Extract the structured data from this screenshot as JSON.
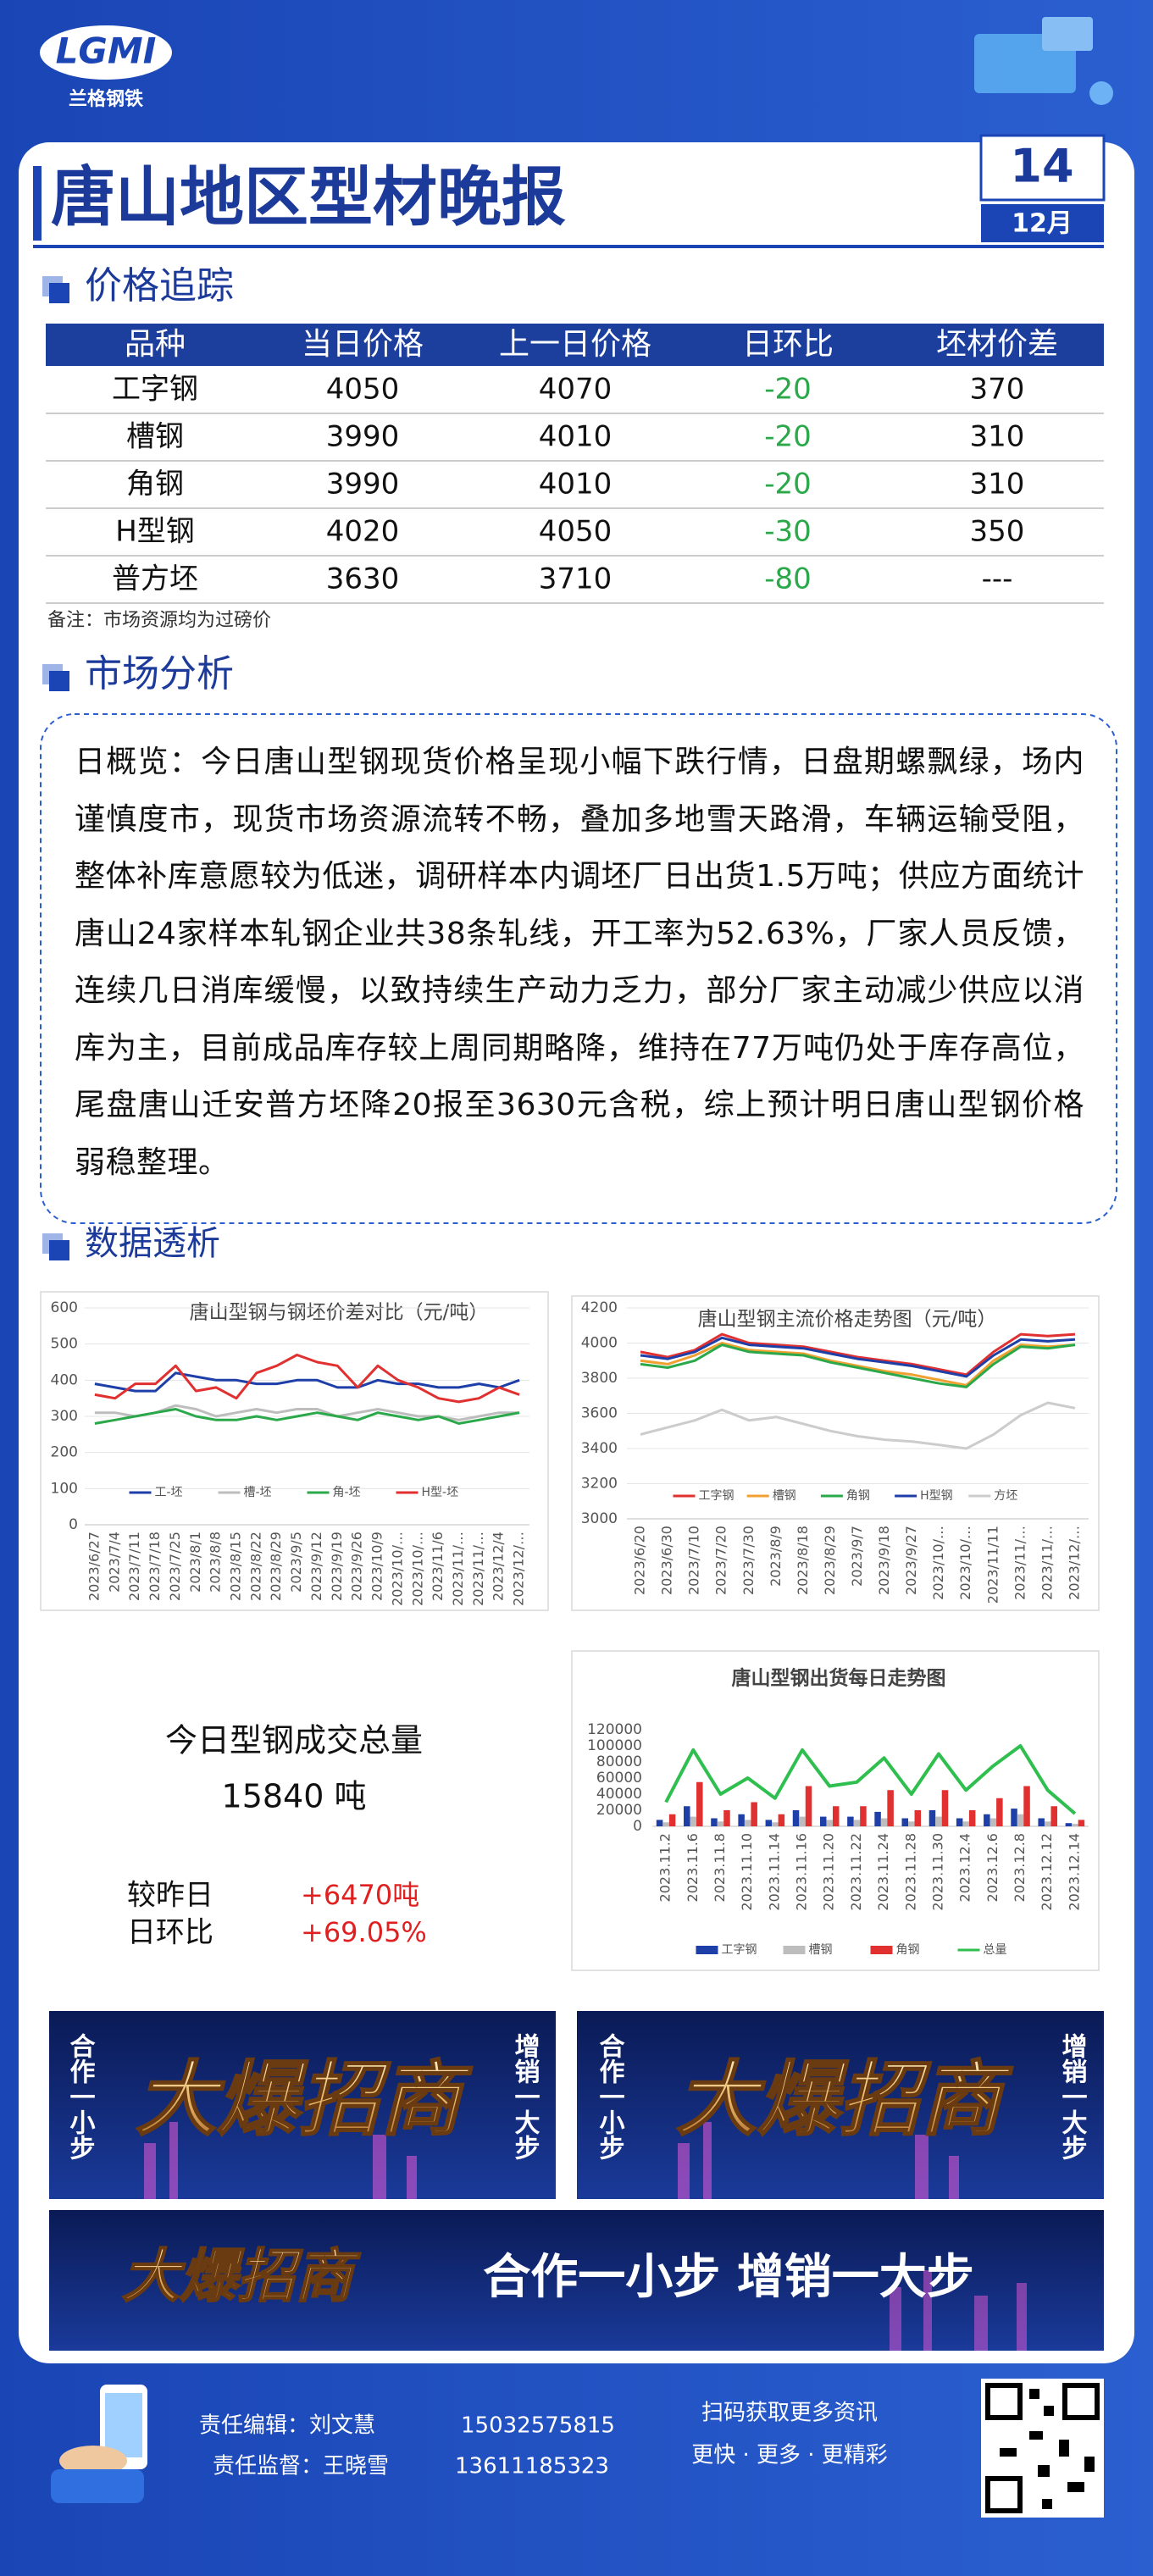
{
  "header": {
    "logo": "LGMI",
    "brand": "兰格钢铁",
    "title": "唐山地区型材晚报",
    "day": "14",
    "month": "12月"
  },
  "price_tracking": {
    "title": "价格追踪",
    "table": {
      "columns": [
        "品种",
        "当日价格",
        "上一日价格",
        "日环比",
        "坯材价差"
      ],
      "rows": [
        [
          "工字钢",
          "4050",
          "4070",
          "-20",
          "370"
        ],
        [
          "槽钢",
          "3990",
          "4010",
          "-20",
          "310"
        ],
        [
          "角钢",
          "3990",
          "4010",
          "-20",
          "310"
        ],
        [
          "H型钢",
          "4020",
          "4050",
          "-30",
          "350"
        ],
        [
          "普方坯",
          "3630",
          "3710",
          "-80",
          "---"
        ]
      ]
    },
    "note": "备注：市场资源均为过磅价"
  },
  "market_analysis": {
    "title": "市场分析",
    "text": "日概览：今日唐山型钢现货价格呈现小幅下跌行情，日盘期螺飘绿，场内谨慎度市，现货市场资源流转不畅，叠加多地雪天路滑，车辆运输受阻，整体补库意愿较为低迷，调研样本内调坯厂日出货1.5万吨；供应方面统计唐山24家样本轧钢企业共38条轧线，开工率为52.63%，厂家人员反馈，连续几日消库缓慢，以致持续生产动力乏力，部分厂家主动减少供应以消库为主，目前成品库存较上周同期略降，维持在77万吨仍处于库存高位，尾盘唐山迁安普方坯降20报至3630元含税，综上预计明日唐山型钢价格弱稳整理。"
  },
  "data_analysis": {
    "title": "数据透析",
    "volume": {
      "label": "今日型钢成交总量",
      "total": "15840 吨",
      "change_label": "较昨日",
      "change": "+6470吨",
      "ratio_label": "日环比",
      "ratio": "+69.05%"
    }
  },
  "chart_data": [
    {
      "type": "line",
      "title": "唐山型钢与钢坯价差对比（元/吨）",
      "categories": [
        "2023/6/27",
        "2023/7/4",
        "2023/7/11",
        "2023/7/18",
        "2023/7/25",
        "2023/8/1",
        "2023/8/8",
        "2023/8/15",
        "2023/8/22",
        "2023/8/29",
        "2023/9/5",
        "2023/9/12",
        "2023/9/19",
        "2023/9/26",
        "2023/10/9",
        "2023/10/…",
        "2023/10/…",
        "2023/11/6",
        "2023/11/…",
        "2023/11/…",
        "2023/12/4",
        "2023/12/…"
      ],
      "series": [
        {
          "name": "工-坯",
          "color": "#1f3fa8",
          "values": [
            390,
            380,
            370,
            370,
            420,
            410,
            400,
            400,
            390,
            390,
            400,
            400,
            380,
            380,
            400,
            390,
            390,
            380,
            380,
            390,
            380,
            400
          ]
        },
        {
          "name": "槽-坯",
          "color": "#bdbdbd",
          "values": [
            310,
            310,
            300,
            310,
            330,
            320,
            300,
            310,
            320,
            310,
            320,
            320,
            300,
            310,
            320,
            310,
            300,
            300,
            290,
            300,
            310,
            310
          ]
        },
        {
          "name": "角-坯",
          "color": "#2aa84a",
          "values": [
            280,
            290,
            300,
            310,
            320,
            300,
            290,
            290,
            300,
            290,
            300,
            310,
            300,
            290,
            310,
            300,
            290,
            300,
            280,
            290,
            300,
            310
          ]
        },
        {
          "name": "H型-坯",
          "color": "#e03030",
          "values": [
            360,
            350,
            390,
            390,
            440,
            370,
            380,
            350,
            420,
            440,
            470,
            450,
            440,
            380,
            440,
            400,
            380,
            350,
            340,
            350,
            380,
            360
          ]
        }
      ],
      "ylim": [
        0,
        600
      ],
      "yticks": [
        0,
        100,
        200,
        300,
        400,
        500,
        600
      ],
      "grid": true,
      "legend": "bottom"
    },
    {
      "type": "line",
      "title": "唐山型钢主流价格走势图（元/吨）",
      "categories": [
        "2023/6/20",
        "2023/6/30",
        "2023/7/10",
        "2023/7/20",
        "2023/7/30",
        "2023/8/9",
        "2023/8/18",
        "2023/8/29",
        "2023/9/7",
        "2023/9/18",
        "2023/9/27",
        "2023/10/…",
        "2023/10/…",
        "2023/11/11",
        "2023/11/…",
        "2023/11/…",
        "2023/12/…"
      ],
      "series": [
        {
          "name": "工字钢",
          "color": "#e03030",
          "values": [
            3950,
            3920,
            3960,
            4050,
            4000,
            3990,
            3980,
            3950,
            3920,
            3900,
            3880,
            3850,
            3820,
            3950,
            4050,
            4040,
            4050
          ]
        },
        {
          "name": "槽钢",
          "color": "#f0a030",
          "values": [
            3900,
            3880,
            3930,
            4000,
            3960,
            3950,
            3940,
            3900,
            3870,
            3840,
            3820,
            3790,
            3760,
            3900,
            3990,
            3980,
            3990
          ]
        },
        {
          "name": "角钢",
          "color": "#2aa84a",
          "values": [
            3880,
            3860,
            3900,
            3990,
            3950,
            3940,
            3930,
            3890,
            3860,
            3830,
            3800,
            3770,
            3750,
            3880,
            3980,
            3970,
            3990
          ]
        },
        {
          "name": "H型钢",
          "color": "#1f3fa8",
          "values": [
            3930,
            3910,
            3950,
            4030,
            3990,
            3980,
            3970,
            3940,
            3910,
            3890,
            3870,
            3840,
            3810,
            3930,
            4020,
            4010,
            4020
          ]
        },
        {
          "name": "方坯",
          "color": "#cccccc",
          "values": [
            3480,
            3520,
            3560,
            3620,
            3560,
            3580,
            3540,
            3500,
            3470,
            3450,
            3440,
            3420,
            3400,
            3480,
            3590,
            3660,
            3630
          ]
        }
      ],
      "ylim": [
        3000,
        4200
      ],
      "yticks": [
        3000,
        3200,
        3400,
        3600,
        3800,
        4000,
        4200
      ],
      "grid": true,
      "legend": "bottom"
    },
    {
      "type": "bar",
      "title": "唐山型钢出货每日走势图",
      "categories": [
        "2023.11.2",
        "2023.11.6",
        "2023.11.8",
        "2023.11.10",
        "2023.11.14",
        "2023.11.16",
        "2023.11.20",
        "2023.11.22",
        "2023.11.24",
        "2023.11.28",
        "2023.11.30",
        "2023.12.4",
        "2023.12.6",
        "2023.12.8",
        "2023.12.12",
        "2023.12.14"
      ],
      "series": [
        {
          "name": "工字钢",
          "color": "#1f3fa8",
          "values": [
            8000,
            25000,
            10000,
            15000,
            8000,
            20000,
            12000,
            12000,
            18000,
            10000,
            20000,
            10000,
            15000,
            22000,
            10000,
            4000
          ]
        },
        {
          "name": "槽钢",
          "color": "#bdbdbd",
          "values": [
            5000,
            12000,
            6000,
            8000,
            5000,
            12000,
            8000,
            8000,
            10000,
            6000,
            12000,
            6000,
            10000,
            15000,
            6000,
            3000
          ]
        },
        {
          "name": "角钢",
          "color": "#e03030",
          "values": [
            15000,
            55000,
            20000,
            30000,
            15000,
            50000,
            25000,
            25000,
            45000,
            20000,
            45000,
            20000,
            35000,
            50000,
            25000,
            8000
          ]
        },
        {
          "name": "总量",
          "color": "#2fbf4f",
          "type": "line",
          "values": [
            30000,
            95000,
            40000,
            60000,
            35000,
            95000,
            50000,
            55000,
            85000,
            40000,
            90000,
            45000,
            75000,
            100000,
            45000,
            15840
          ]
        }
      ],
      "ylim": [
        0,
        120000
      ],
      "yticks": [
        0,
        20000,
        40000,
        60000,
        80000,
        100000,
        120000
      ],
      "grid": false,
      "legend": "below"
    }
  ],
  "banners": {
    "slogan_left": "合作一小步",
    "slogan_right": "增销一大步",
    "headline": "大爆招商",
    "wide_slogan": "合作一小步  增销一大步"
  },
  "footer": {
    "editor": "责任编辑：刘文慧",
    "editor_phone": "15032575815",
    "supervisor": "责任监督：王晓雪",
    "supervisor_phone": "13611185323",
    "qr_caption": "扫码获取更多资讯",
    "tagline": "更快 · 更多 · 更精彩"
  }
}
